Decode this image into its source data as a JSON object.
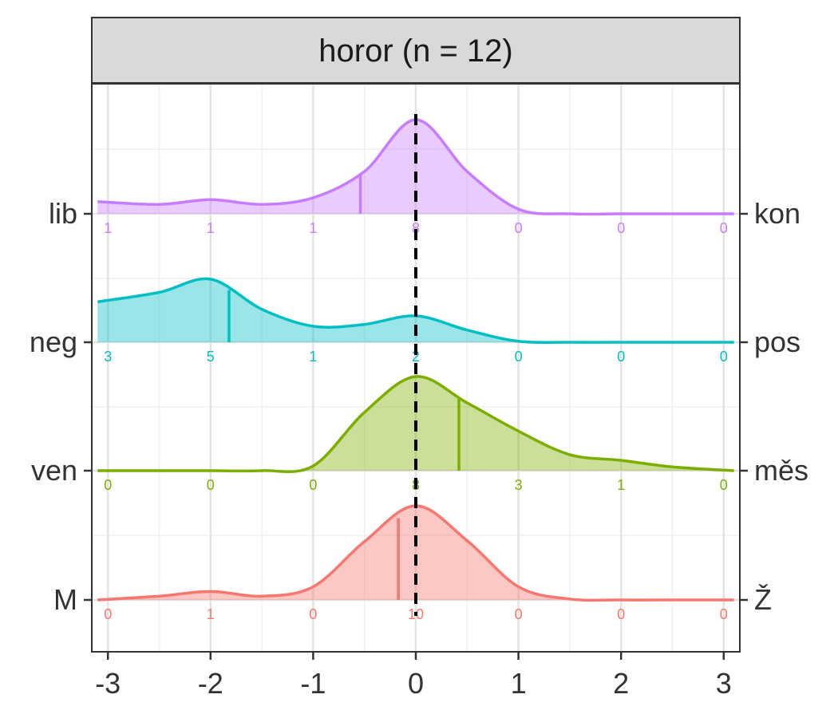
{
  "chart_data": {
    "type": "ridgeline",
    "title": "horor (n = 12)",
    "xlabel": "",
    "ylabel": "",
    "xlim": [
      -3.1,
      3.1
    ],
    "x_ticks": [
      -3,
      -2,
      -1,
      0,
      1,
      2,
      3
    ],
    "x_tick_labels": [
      "-3",
      "-2",
      "-1",
      "0",
      "1",
      "2",
      "3"
    ],
    "grid": true,
    "reference_line": {
      "x": 0,
      "style": "dashed",
      "color": "#000000"
    },
    "series": [
      {
        "left_label": "M",
        "right_label": "Ž",
        "color": "#F8766D",
        "mean": -0.17,
        "count_x": [
          -3,
          -2,
          -1,
          0,
          1,
          2,
          3
        ],
        "counts": [
          "0",
          "1",
          "0",
          "10",
          "0",
          "0",
          "0"
        ],
        "density_x": [
          -3.1,
          -2.5,
          -2.0,
          -1.5,
          -1.0,
          -0.5,
          0.0,
          0.5,
          1.0,
          1.5,
          2.0,
          2.5,
          3.1
        ],
        "density_y": [
          0.0,
          0.04,
          0.09,
          0.04,
          0.14,
          0.62,
          1.0,
          0.63,
          0.14,
          0.01,
          0.0,
          0.0,
          0.0
        ]
      },
      {
        "left_label": "ven",
        "right_label": "měs",
        "color": "#7CAE00",
        "mean": 0.42,
        "count_x": [
          -3,
          -2,
          -1,
          0,
          1,
          2,
          3
        ],
        "counts": [
          "0",
          "0",
          "0",
          "8",
          "3",
          "1",
          "0"
        ],
        "density_x": [
          -3.1,
          -2.5,
          -2.0,
          -1.5,
          -1.0,
          -0.5,
          0.0,
          0.5,
          1.0,
          1.5,
          2.0,
          2.5,
          3.1
        ],
        "density_y": [
          0.0,
          0.0,
          0.0,
          0.0,
          0.05,
          0.62,
          1.0,
          0.72,
          0.42,
          0.17,
          0.11,
          0.04,
          0.0
        ]
      },
      {
        "left_label": "neg",
        "right_label": "pos",
        "color": "#00BFC4",
        "mean": -1.82,
        "count_x": [
          -3,
          -2,
          -1,
          0,
          1,
          2,
          3
        ],
        "counts": [
          "3",
          "5",
          "1",
          "2",
          "0",
          "0",
          "0"
        ],
        "density_x": [
          -3.1,
          -2.5,
          -2.0,
          -1.5,
          -1.0,
          -0.5,
          0.0,
          0.5,
          1.0,
          1.5,
          2.0,
          2.5,
          3.1
        ],
        "density_y": [
          0.43,
          0.53,
          0.67,
          0.35,
          0.17,
          0.19,
          0.28,
          0.13,
          0.01,
          0.0,
          0.0,
          0.0,
          0.0
        ]
      },
      {
        "left_label": "lib",
        "right_label": "kon",
        "color": "#C77CFF",
        "mean": -0.54,
        "count_x": [
          -3,
          -2,
          -1,
          0,
          1,
          2,
          3
        ],
        "counts": [
          "1",
          "1",
          "1",
          "8",
          "0",
          "0",
          "0"
        ],
        "density_x": [
          -3.1,
          -2.5,
          -2.0,
          -1.5,
          -1.0,
          -0.5,
          0.0,
          0.5,
          1.0,
          1.5,
          2.0,
          2.5,
          3.1
        ],
        "density_y": [
          0.13,
          0.1,
          0.15,
          0.1,
          0.17,
          0.45,
          1.0,
          0.45,
          0.05,
          0.0,
          0.0,
          0.0,
          0.0
        ]
      }
    ]
  }
}
